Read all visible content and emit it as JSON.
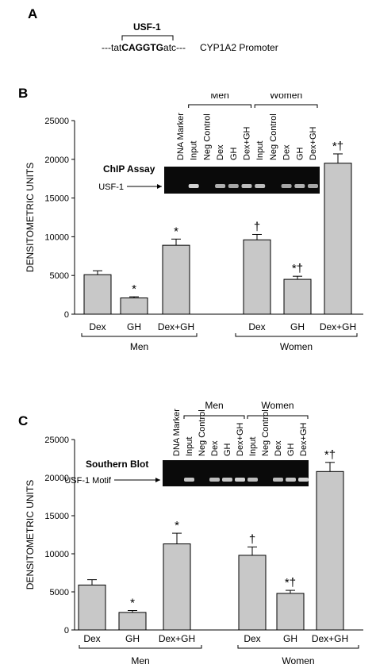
{
  "panel_a": {
    "letter": "A",
    "motif_label": "USF-1",
    "seq_prefix": "---tat",
    "seq_motif": "CAGGTG",
    "seq_suffix": "atc---",
    "promoter_label": "CYP1A2 Promoter"
  },
  "colors": {
    "bar_fill": "#c8c8c8",
    "bar_stroke": "#000000",
    "gel_bg": "#0a0a0a",
    "band": "#e8e8e8"
  },
  "chart_data": [
    {
      "type": "bar",
      "panel": "B",
      "ylabel": "DENSITOMETRIC UNITS",
      "ylim": [
        0,
        25000
      ],
      "yticks": [
        "0",
        "5000",
        "10000",
        "15000",
        "20000",
        "25000"
      ],
      "categories": [
        "Dex",
        "GH",
        "Dex+GH",
        "Dex",
        "GH",
        "Dex+GH"
      ],
      "groups": [
        {
          "name": "Men",
          "indices": [
            0,
            1,
            2
          ]
        },
        {
          "name": "Women",
          "indices": [
            3,
            4,
            5
          ]
        }
      ],
      "values": [
        5100,
        2100,
        8900,
        9600,
        4500,
        19500
      ],
      "errors": [
        500,
        150,
        800,
        700,
        400,
        1200
      ],
      "annotations": [
        "",
        "*",
        "*",
        "†",
        "*†",
        "*†"
      ],
      "inset": {
        "title": "ChIP Assay",
        "band_label": "USF-1",
        "lanes": [
          "DNA Marker",
          "Input",
          "Neg Control",
          "Dex",
          "GH",
          "Dex+GH",
          "Input",
          "Neg Control",
          "Dex",
          "GH",
          "Dex+GH"
        ],
        "lane_groups": [
          {
            "name": "Men",
            "from": 1,
            "to": 5
          },
          {
            "name": "Women",
            "from": 6,
            "to": 10
          }
        ],
        "band_intensity": [
          0,
          0.9,
          0,
          0.75,
          0.7,
          0.8,
          0.8,
          0,
          0.7,
          0.75,
          0.7
        ]
      }
    },
    {
      "type": "bar",
      "panel": "C",
      "ylabel": "DENSITOMETRIC UNITS",
      "ylim": [
        0,
        25000
      ],
      "yticks": [
        "0",
        "5000",
        "10000",
        "15000",
        "20000",
        "25000"
      ],
      "categories": [
        "Dex",
        "GH",
        "Dex+GH",
        "Dex",
        "GH",
        "Dex+GH"
      ],
      "groups": [
        {
          "name": "Men",
          "indices": [
            0,
            1,
            2
          ]
        },
        {
          "name": "Women",
          "indices": [
            3,
            4,
            5
          ]
        }
      ],
      "values": [
        5900,
        2300,
        11300,
        9800,
        4800,
        20800
      ],
      "errors": [
        700,
        250,
        1400,
        1100,
        400,
        1200
      ],
      "annotations": [
        "",
        "*",
        "*",
        "†",
        "*†",
        "*†"
      ],
      "inset": {
        "title": "Southern Blot",
        "band_label": "USF-1 Motif",
        "lanes": [
          "DNA Marker",
          "Input",
          "Neg Control",
          "Dex",
          "GH",
          "Dex+GH",
          "Input",
          "Neg Control",
          "Dex",
          "GH",
          "Dex+GH"
        ],
        "lane_groups": [
          {
            "name": "Men",
            "from": 1,
            "to": 5
          },
          {
            "name": "Women",
            "from": 6,
            "to": 10
          }
        ],
        "band_intensity": [
          0,
          0.85,
          0,
          0.8,
          0.85,
          0.9,
          0.8,
          0,
          0.8,
          0.85,
          0.9
        ]
      }
    }
  ]
}
